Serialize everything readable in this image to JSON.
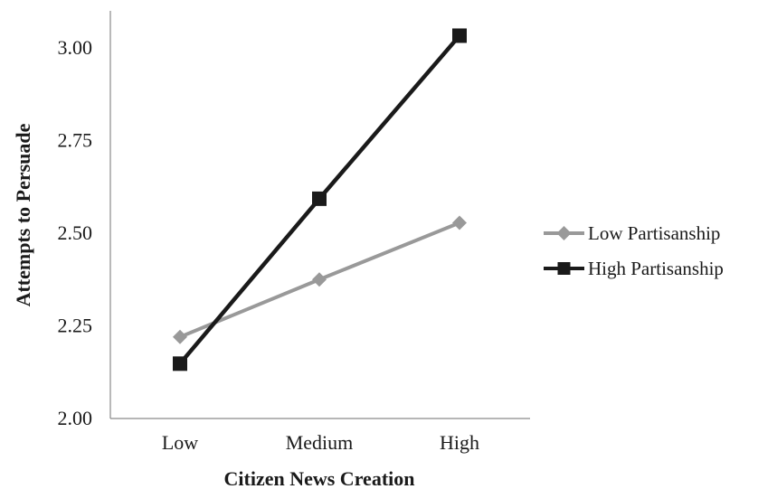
{
  "chart_data": {
    "type": "line",
    "categories": [
      "Low",
      "Medium",
      "High"
    ],
    "series": [
      {
        "name": "Low Partisanship",
        "values": [
          2.22,
          2.375,
          2.528
        ],
        "color": "#999999",
        "marker": "diamond"
      },
      {
        "name": "High Partisanship",
        "values": [
          2.148,
          2.593,
          3.033
        ],
        "color": "#1a1a1a",
        "marker": "square"
      }
    ],
    "xlabel": "Citizen News Creation",
    "ylabel": "Attempts to Persuade",
    "ylim": [
      2.0,
      3.0
    ],
    "yticks": [
      "2.00",
      "2.25",
      "2.50",
      "2.75",
      "3.00"
    ],
    "grid": false,
    "legend_position": "right"
  }
}
